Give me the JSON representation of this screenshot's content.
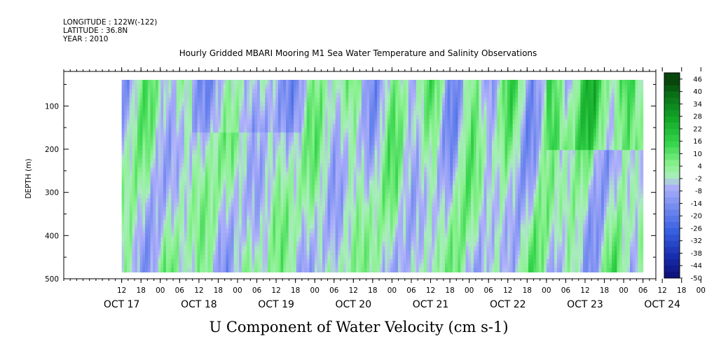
{
  "header": {
    "longitude": "LONGITUDE : 122W(-122)",
    "latitude": "LATITUDE : 36.8N",
    "year": "YEAR : 2010",
    "title": "Hourly Gridded MBARI Mooring M1 Sea Water Temperature and Salinity Observations"
  },
  "chart_data": {
    "type": "heatmap",
    "title": "Hourly Gridded MBARI Mooring M1 Sea Water Temperature and Salinity Observations",
    "variable": "U Component of Water Velocity (cm s-1)",
    "ylabel": "DEPTH (m)",
    "y_inverted": true,
    "ylim": [
      500,
      20
    ],
    "y_ticks": [
      100,
      200,
      300,
      400,
      500
    ],
    "x_start": "OCT 16 2010 18:00",
    "x_end": "OCT 24 2010 10:00",
    "x_ticks": [
      "12",
      "18",
      "00",
      "06",
      "12",
      "18",
      "00",
      "06",
      "12",
      "18",
      "00",
      "06",
      "12",
      "18",
      "00",
      "06",
      "12",
      "18",
      "00",
      "06",
      "12",
      "18",
      "00",
      "06",
      "12",
      "18",
      "00",
      "06",
      "12",
      "18",
      "00",
      "06"
    ],
    "day_labels": [
      "OCT 17",
      "OCT 18",
      "OCT 19",
      "OCT 20",
      "OCT 21",
      "OCT 22",
      "OCT 23",
      "OCT 24"
    ],
    "data_x_range": [
      "OCT 17 12:00",
      "OCT 24 06:00"
    ],
    "data_depth_range": [
      20,
      485
    ],
    "colorbar_levels": [
      46,
      40,
      34,
      28,
      22,
      16,
      10,
      4,
      -2,
      -8,
      -14,
      -20,
      -26,
      -32,
      -38,
      -44,
      -50
    ],
    "colors": {
      "strong_positive": "#0b4d0b",
      "positive": "#22c233",
      "weak_positive": "#9ef39a",
      "weak_negative": "#a8a8f8",
      "negative": "#5e7ae8",
      "strong_negative": "#0a1a82"
    }
  },
  "xlabel": "U Component of Water Velocity (cm s-1)"
}
